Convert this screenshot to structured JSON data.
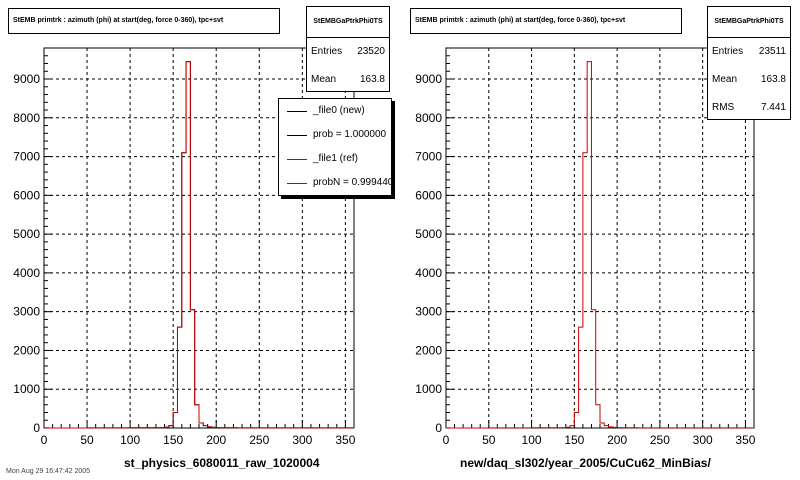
{
  "pads": [
    {
      "title": "StEMB primtrk : azimuth (phi) at start(deg, force 0-360), tpc+svt",
      "stats": {
        "name": "StEMBGaPtrkPhi0TS",
        "rows": [
          {
            "label": "Entries",
            "value": "23520"
          },
          {
            "label": "Mean",
            "value": "163.8"
          }
        ]
      },
      "legend": [
        {
          "label": "_file0 (new)",
          "color": "#000000"
        },
        {
          "label": "prob = 1.000000",
          "color": "#000000"
        },
        {
          "label": "_file1 (ref)",
          "color": "#cc0000"
        },
        {
          "label": "probN = 0.999440",
          "color": "#cc0000"
        }
      ],
      "xtitle": "st_physics_6080011_raw_1020004"
    },
    {
      "title": "StEMB primtrk : azimuth (phi) at start(deg, force 0-360), tpc+svt",
      "stats": {
        "name": "StEMBGaPtrkPhi0TS",
        "rows": [
          {
            "label": "Entries",
            "value": "23511"
          },
          {
            "label": "Mean",
            "value": "163.8"
          },
          {
            "label": "RMS",
            "value": "7.441"
          }
        ]
      },
      "legend": [],
      "xtitle": "new/daq_sl302/year_2005/CuCu62_MinBias/"
    }
  ],
  "footer": "Mon Aug 29 16:47:42 2005",
  "chart_data": [
    {
      "type": "bar",
      "title": "StEMB primtrk : azimuth (phi) at start(deg, force 0-360), tpc+svt",
      "xlabel": "st_physics_6080011_raw_1020004",
      "ylabel": "",
      "xlim": [
        0,
        360
      ],
      "ylim": [
        0,
        9800
      ],
      "xticks": [
        "0",
        "50",
        "100",
        "150",
        "200",
        "250",
        "300",
        "350"
      ],
      "yticks": [
        "0",
        "1000",
        "2000",
        "3000",
        "4000",
        "5000",
        "6000",
        "7000",
        "8000",
        "9000"
      ],
      "grid": true,
      "legend_position": "top-right",
      "bin_width": 5,
      "bin_edges": [
        0,
        5,
        10,
        15,
        20,
        25,
        30,
        35,
        40,
        45,
        50,
        55,
        60,
        65,
        70,
        75,
        80,
        85,
        90,
        95,
        100,
        105,
        110,
        115,
        120,
        125,
        130,
        135,
        140,
        145,
        150,
        155,
        160,
        165,
        170,
        175,
        180,
        185,
        190,
        195,
        200,
        205,
        210,
        215,
        220,
        225,
        230,
        235,
        240,
        245,
        250,
        255,
        260,
        265,
        270,
        275,
        280,
        285,
        290,
        295,
        300,
        305,
        310,
        315,
        320,
        325,
        330,
        335,
        340,
        345,
        350,
        355,
        360
      ],
      "series": [
        {
          "name": "_file0 (new)",
          "color": "#000000",
          "values": [
            2,
            1,
            1,
            1,
            1,
            1,
            1,
            1,
            1,
            1,
            2,
            2,
            2,
            2,
            2,
            2,
            2,
            2,
            2,
            3,
            5,
            8,
            5,
            6,
            6,
            6,
            8,
            10,
            20,
            60,
            400,
            2600,
            7100,
            9450,
            3050,
            600,
            130,
            60,
            30,
            15,
            10,
            8,
            6,
            5,
            5,
            4,
            4,
            4,
            3,
            3,
            3,
            3,
            3,
            3,
            3,
            3,
            3,
            3,
            3,
            3,
            3,
            3,
            3,
            3,
            3,
            3,
            3,
            3,
            3,
            3,
            3,
            3
          ]
        },
        {
          "name": "_file1 (ref)",
          "color": "#cc0000",
          "values": [
            2,
            1,
            1,
            1,
            1,
            1,
            1,
            1,
            1,
            1,
            2,
            2,
            2,
            2,
            2,
            2,
            2,
            2,
            2,
            3,
            5,
            8,
            5,
            6,
            6,
            6,
            8,
            10,
            20,
            60,
            400,
            2600,
            7100,
            9450,
            3050,
            600,
            130,
            60,
            30,
            15,
            10,
            8,
            6,
            5,
            5,
            4,
            4,
            4,
            3,
            3,
            3,
            3,
            3,
            3,
            3,
            3,
            3,
            3,
            3,
            3,
            3,
            3,
            3,
            3,
            3,
            3,
            3,
            3,
            3,
            3,
            3,
            3
          ]
        }
      ]
    },
    {
      "type": "bar",
      "title": "StEMB primtrk : azimuth (phi) at start(deg, force 0-360), tpc+svt",
      "xlabel": "new/daq_sl302/year_2005/CuCu62_MinBias/",
      "ylabel": "",
      "xlim": [
        0,
        360
      ],
      "ylim": [
        0,
        9800
      ],
      "xticks": [
        "0",
        "50",
        "100",
        "150",
        "200",
        "250",
        "300",
        "350"
      ],
      "yticks": [
        "0",
        "1000",
        "2000",
        "3000",
        "4000",
        "5000",
        "6000",
        "7000",
        "8000",
        "9000"
      ],
      "grid": true,
      "legend_position": "none",
      "bin_width": 5,
      "bin_edges": [
        0,
        5,
        10,
        15,
        20,
        25,
        30,
        35,
        40,
        45,
        50,
        55,
        60,
        65,
        70,
        75,
        80,
        85,
        90,
        95,
        100,
        105,
        110,
        115,
        120,
        125,
        130,
        135,
        140,
        145,
        150,
        155,
        160,
        165,
        170,
        175,
        180,
        185,
        190,
        195,
        200,
        205,
        210,
        215,
        220,
        225,
        230,
        235,
        240,
        245,
        250,
        255,
        260,
        265,
        270,
        275,
        280,
        285,
        290,
        295,
        300,
        305,
        310,
        315,
        320,
        325,
        330,
        335,
        340,
        345,
        350,
        355,
        360
      ],
      "series": [
        {
          "name": "",
          "color": "#cc0000",
          "values": [
            2,
            1,
            1,
            1,
            1,
            1,
            1,
            1,
            1,
            1,
            2,
            2,
            2,
            2,
            2,
            2,
            2,
            2,
            2,
            3,
            5,
            8,
            5,
            6,
            6,
            6,
            8,
            10,
            20,
            60,
            400,
            2600,
            7100,
            9450,
            3050,
            600,
            130,
            60,
            30,
            15,
            10,
            8,
            6,
            5,
            5,
            4,
            4,
            4,
            3,
            3,
            3,
            3,
            3,
            3,
            3,
            3,
            3,
            3,
            3,
            3,
            3,
            3,
            3,
            3,
            3,
            3,
            3,
            3,
            3,
            3,
            3,
            3
          ]
        }
      ]
    }
  ]
}
